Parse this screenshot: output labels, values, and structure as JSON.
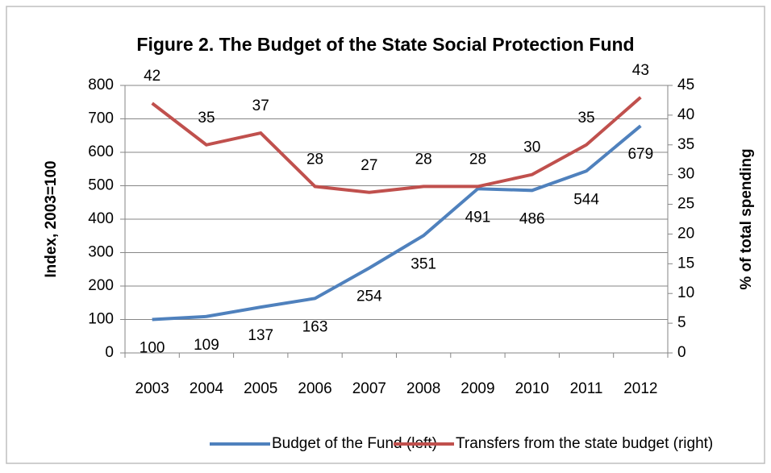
{
  "chart_data": {
    "type": "line",
    "title": "Figure 2. The Budget of the State Social Protection Fund",
    "ylabel": "Index, 2003=100",
    "y2label": "% of total spending",
    "categories": [
      "2003",
      "2004",
      "2005",
      "2006",
      "2007",
      "2008",
      "2009",
      "2010",
      "2011",
      "2012"
    ],
    "series": [
      {
        "name": "Budget of the Fund (left)",
        "color": "#4f81bd",
        "values": [
          100,
          109,
          137,
          163,
          254,
          351,
          491,
          486,
          544,
          679
        ]
      },
      {
        "name": "Transfers from the state budget (right)",
        "color": "#c0504d",
        "axis": "y2",
        "values": [
          42,
          35,
          37,
          28,
          27,
          28,
          28,
          30,
          35,
          43
        ]
      }
    ],
    "ylim": [
      0,
      800
    ],
    "yticks": [
      0,
      100,
      200,
      300,
      400,
      500,
      600,
      700,
      800
    ],
    "y2lim": [
      0,
      45
    ],
    "y2ticks": [
      0,
      5,
      10,
      15,
      20,
      25,
      30,
      35,
      40,
      45
    ],
    "grid": true,
    "legend": "bottom"
  }
}
